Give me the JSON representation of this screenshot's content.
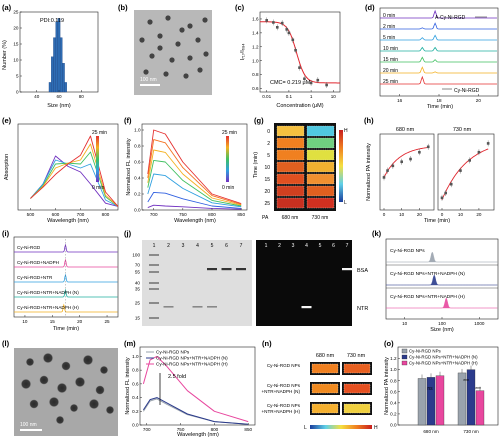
{
  "panel_letters": [
    "(a)",
    "(b)",
    "(c)",
    "(d)",
    "(e)",
    "(f)",
    "(g)",
    "(h)",
    "(i)",
    "(j)",
    "(k)",
    "(l)",
    "(m)",
    "(n)",
    "(o)"
  ],
  "a": {
    "pdi": "PDI:0.119",
    "xlabel": "Size (nm)",
    "ylabel": "Number (%)",
    "xticks": [
      "40",
      "60",
      "80"
    ],
    "yticks": [
      "0",
      "5",
      "10",
      "15",
      "20",
      "25"
    ]
  },
  "b": {
    "scale": "100 nm"
  },
  "c": {
    "ylabel": "I₇₁₇/I₆₈₄",
    "xlabel": "Concentration (μM)",
    "cmc": "CMC= 0.219 μM",
    "xticks": [
      "0.01",
      "0.1",
      "1",
      "10"
    ],
    "yticks": [
      "0.6",
      "0.8",
      "1.0",
      "1.2",
      "1.4",
      "1.6"
    ]
  },
  "d": {
    "labels": [
      "0 min",
      "2 min",
      "5 min",
      "10 min",
      "15 min",
      "20 min",
      "25 min"
    ],
    "reactant": "A-Cy-Ni-RGD",
    "product": "Cy-Ni-RGD",
    "xlabel": "Time (min)",
    "xticks": [
      "16",
      "18",
      "20"
    ]
  },
  "e": {
    "xlabel": "Wavelength (nm)",
    "ylabel": "Absorption",
    "t_top": "25 min",
    "t_bot": "0 min",
    "xticks": [
      "500",
      "600",
      "700",
      "800"
    ]
  },
  "f": {
    "xlabel": "Wavelength (nm)",
    "ylabel": "Normalized FL intensity",
    "t_top": "25 min",
    "t_bot": "0 min",
    "xticks": [
      "700",
      "750",
      "800",
      "850"
    ],
    "yticks": [
      "0.0",
      "0.2",
      "0.4",
      "0.6",
      "0.8",
      "1.0"
    ]
  },
  "g": {
    "ylabel": "Time (min)",
    "times": [
      "0",
      "2",
      "5",
      "10",
      "15",
      "20",
      "25"
    ],
    "x_pa": "PA",
    "x1": "680 nm",
    "x2": "730 nm",
    "high": "H",
    "low": "L"
  },
  "h": {
    "t1": "680 nm",
    "t2": "730 nm",
    "ylabel": "Normalized PA intensity",
    "xlabel": "Time (min)",
    "xticks": [
      "0",
      "10",
      "20"
    ]
  },
  "i": {
    "labels": [
      "Cy-Ni-RGD",
      "Cy-Ni-RGD+NADPH",
      "Cy-Ni-RGD+NTR",
      "Cy-Ni-RGD+NTR+NADPH (N)",
      "Cy-Ni-RGD+NTR+NADPH (H)"
    ],
    "xlabel": "Time (min)",
    "xticks": [
      "10",
      "15",
      "20",
      "25"
    ]
  },
  "j": {
    "lanes": [
      "1",
      "2",
      "3",
      "4",
      "5",
      "6",
      "7"
    ],
    "mw": [
      "100",
      "70",
      "55",
      "40",
      "35",
      "25",
      "15"
    ],
    "bsa": "BSA",
    "ntr": "NTR"
  },
  "k": {
    "labels": [
      "Cy-Ni-RGD NPs",
      "Cy-Ni-RGD NPs+NTR+NADPH (N)",
      "Cy-Ni-RGD NPs+NTR+NADPH (H)"
    ],
    "xlabel": "Size (nm)",
    "xticks": [
      "10",
      "100",
      "1000"
    ]
  },
  "l": {
    "scale": "100 nm"
  },
  "m": {
    "legend": [
      "Cy-Ni-RGD NPs",
      "Cy-Ni-RGD NPs+NTR+NADPH (N)",
      "Cy-Ni-RGD NPs+NTR+NADPH (H)"
    ],
    "fold": "2.5 fold",
    "xlabel": "Wavelength (nm)",
    "ylabel": "Normalized FL intensity",
    "xticks": [
      "700",
      "750",
      "800",
      "850"
    ],
    "yticks": [
      "0.0",
      "0.2",
      "0.4",
      "0.6",
      "0.8",
      "1.0"
    ]
  },
  "n": {
    "h1": "680 nm",
    "h2": "730 nm",
    "rows": [
      "Cy-Ni-RGD NPs",
      "Cy-Ni-RGD NPs +NTR+NADPH (N)",
      "Cy-Ni-RGD NPs +NTR+NADPH (H)"
    ],
    "low": "L",
    "high": "H"
  },
  "o": {
    "legend": [
      "Cy-Ni-RGD NPs",
      "Cy-Ni-RGD NPs+NTR+NADPH (N)",
      "Cy-Ni-RGD NPs+NTR+NADPH (H)"
    ],
    "ylabel": "Normalized PA intensity",
    "groups": [
      "680 nm",
      "730 nm"
    ],
    "ns": "ns",
    "stars": "***",
    "yticks": [
      "0.0",
      "0.2",
      "0.4",
      "0.6",
      "0.8",
      "1.0",
      "1.2"
    ]
  },
  "colors": {
    "red": "#e0262e",
    "navy": "#2b3b8c",
    "pink": "#e8479e",
    "gray": "#9aa3ad",
    "bar_blue": "#2e6db4"
  },
  "chart_data": [
    {
      "panel": "a",
      "type": "bar",
      "title": "",
      "xlabel": "Size (nm)",
      "ylabel": "Number (%)",
      "xlim": [
        25,
        95
      ],
      "ylim": [
        0,
        25
      ],
      "x": [
        52,
        54,
        56,
        58,
        60,
        62,
        64,
        66
      ],
      "values": [
        3,
        11,
        17,
        22,
        23,
        17,
        9,
        3
      ]
    },
    {
      "panel": "c",
      "type": "scatter",
      "xlabel": "Concentration (μM)",
      "ylabel": "I717/I684",
      "xscale": "log",
      "xlim": [
        0.005,
        20
      ],
      "ylim": [
        0.55,
        1.7
      ],
      "x": [
        0.01,
        0.02,
        0.03,
        0.05,
        0.08,
        0.1,
        0.15,
        0.2,
        0.3,
        0.5,
        1,
        2,
        5
      ],
      "values": [
        1.58,
        1.55,
        1.48,
        1.54,
        1.45,
        1.4,
        1.3,
        1.15,
        0.9,
        0.74,
        0.68,
        0.72,
        0.65
      ]
    },
    {
      "panel": "e",
      "type": "line",
      "xlabel": "Wavelength (nm)",
      "ylabel": "Absorption",
      "xlim": [
        450,
        850
      ],
      "x": [
        500,
        550,
        600,
        650,
        700,
        740,
        800,
        850
      ],
      "series": [
        {
          "values": [
            0.12,
            0.3,
            0.65,
            0.52,
            0.45,
            0.3,
            0.06,
            0.02
          ]
        },
        {
          "values": [
            0.12,
            0.3,
            0.6,
            0.55,
            0.5,
            0.55,
            0.1,
            0.02
          ]
        },
        {
          "values": [
            0.12,
            0.28,
            0.55,
            0.56,
            0.55,
            0.7,
            0.14,
            0.02
          ]
        },
        {
          "values": [
            0.12,
            0.27,
            0.5,
            0.56,
            0.6,
            0.8,
            0.16,
            0.02
          ]
        },
        {
          "values": [
            0.12,
            0.26,
            0.42,
            0.55,
            0.66,
            0.9,
            0.2,
            0.02
          ]
        }
      ]
    },
    {
      "panel": "f",
      "type": "line",
      "xlabel": "Wavelength (nm)",
      "ylabel": "Normalized FL intensity",
      "xlim": [
        680,
        860
      ],
      "ylim": [
        0,
        1.05
      ],
      "x": [
        690,
        700,
        720,
        750,
        800,
        850
      ],
      "series": [
        {
          "values": [
            0.45,
            1.0,
            0.95,
            0.6,
            0.2,
            0.08
          ]
        },
        {
          "values": [
            0.4,
            0.88,
            0.84,
            0.53,
            0.18,
            0.07
          ]
        },
        {
          "values": [
            0.34,
            0.75,
            0.72,
            0.45,
            0.15,
            0.06
          ]
        },
        {
          "values": [
            0.28,
            0.62,
            0.6,
            0.37,
            0.12,
            0.05
          ]
        },
        {
          "values": [
            0.2,
            0.45,
            0.43,
            0.27,
            0.09,
            0.04
          ]
        },
        {
          "values": [
            0.1,
            0.22,
            0.21,
            0.14,
            0.05,
            0.02
          ]
        },
        {
          "values": [
            0.03,
            0.06,
            0.05,
            0.04,
            0.02,
            0.01
          ]
        }
      ]
    },
    {
      "panel": "h",
      "type": "scatter",
      "xlabel": "Time (min)",
      "ylabel": "Normalized PA intensity",
      "series": [
        {
          "name": "680 nm",
          "x": [
            0,
            2,
            5,
            10,
            15,
            20,
            25
          ],
          "values": [
            0.45,
            0.55,
            0.62,
            0.68,
            0.72,
            0.82,
            0.9
          ]
        },
        {
          "name": "730 nm",
          "x": [
            0,
            2,
            5,
            10,
            15,
            20,
            25
          ],
          "values": [
            0.15,
            0.22,
            0.35,
            0.55,
            0.7,
            0.82,
            0.95
          ]
        }
      ]
    },
    {
      "panel": "m",
      "type": "line",
      "xlabel": "Wavelength (nm)",
      "ylabel": "Normalized FL intensity",
      "xlim": [
        690,
        860
      ],
      "ylim": [
        0,
        1.05
      ],
      "x": [
        695,
        705,
        715,
        730,
        760,
        800,
        850
      ],
      "series": [
        {
          "name": "Cy-Ni-RGD NPs",
          "values": [
            0.2,
            0.35,
            0.38,
            0.3,
            0.15,
            0.05,
            0.01
          ]
        },
        {
          "name": "Cy-Ni-RGD NPs+NTR+NADPH (N)",
          "values": [
            0.22,
            0.37,
            0.4,
            0.32,
            0.16,
            0.05,
            0.01
          ]
        },
        {
          "name": "Cy-Ni-RGD NPs+NTR+NADPH (H)",
          "values": [
            0.6,
            0.95,
            1.0,
            0.85,
            0.5,
            0.2,
            0.05
          ]
        }
      ]
    },
    {
      "panel": "o",
      "type": "bar",
      "ylabel": "Normalized PA intensity",
      "categories": [
        "680 nm",
        "730 nm"
      ],
      "ylim": [
        0,
        1.3
      ],
      "series": [
        {
          "name": "Cy-Ni-RGD NPs",
          "values": [
            0.84,
            0.94
          ]
        },
        {
          "name": "Cy-Ni-RGD NPs+NTR+NADPH (N)",
          "values": [
            0.86,
            1.0
          ]
        },
        {
          "name": "Cy-Ni-RGD NPs+NTR+NADPH (H)",
          "values": [
            0.89,
            0.62
          ]
        }
      ]
    }
  ]
}
